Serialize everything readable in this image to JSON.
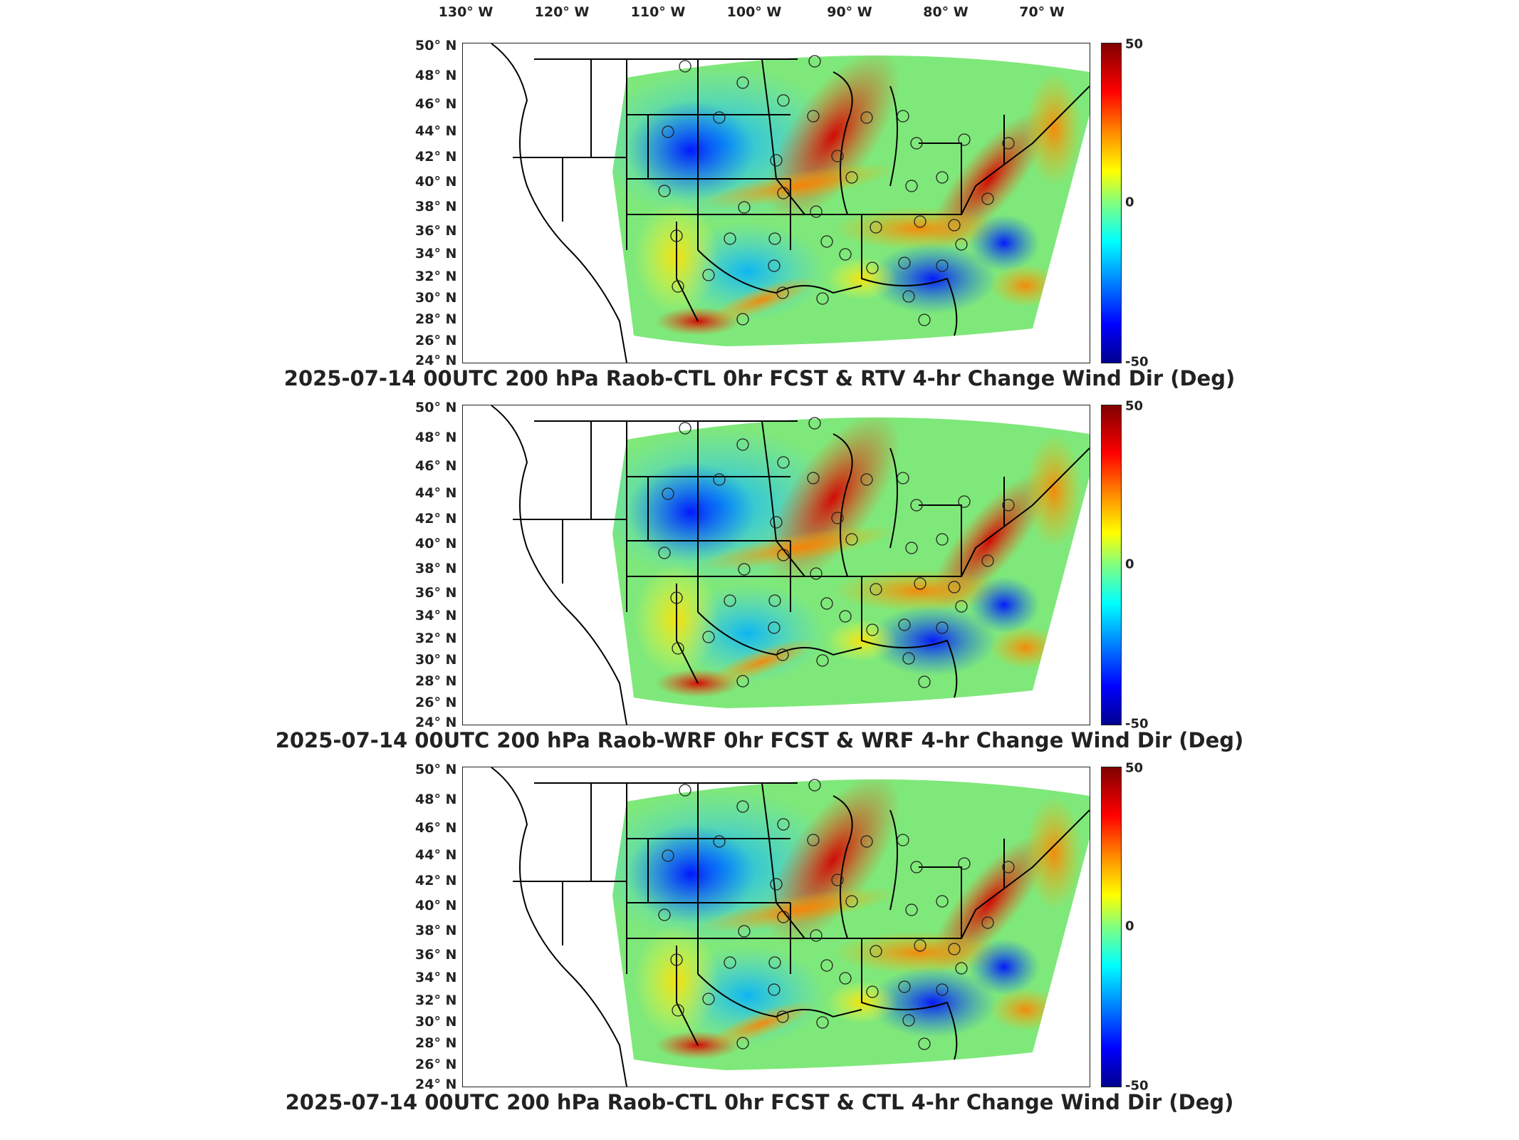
{
  "lon_labels": [
    "130° W",
    "120° W",
    "110° W",
    "100° W",
    "90° W",
    "80° W",
    "70° W"
  ],
  "lat_labels": [
    "50° N",
    "48° N",
    "46° N",
    "44° N",
    "42° N",
    "40° N",
    "38° N",
    "36° N",
    "34° N",
    "32° N",
    "30° N",
    "28° N",
    "26° N",
    "24° N"
  ],
  "colorbar": {
    "max": "50",
    "mid": "0",
    "min": "-50"
  },
  "panels": [
    {
      "title": "2025-07-14 00UTC 200 hPa Raob-CTL 0hr FCST & RTV 4-hr Change Wind Dir (Deg)"
    },
    {
      "title": "2025-07-14 00UTC 200 hPa Raob-WRF 0hr FCST & WRF 4-hr Change Wind Dir (Deg)"
    },
    {
      "title": "2025-07-14 00UTC 200 hPa Raob-CTL 0hr FCST & CTL 4-hr Change Wind Dir (Deg)"
    }
  ],
  "map_data": {
    "projection": "lon-lat",
    "extent": {
      "lon": [
        -135,
        -65
      ],
      "lat": [
        24,
        50
      ]
    },
    "variable": "4-hr change wind direction (Deg)",
    "colormap": "jet",
    "color_range": [
      -50,
      50
    ]
  }
}
